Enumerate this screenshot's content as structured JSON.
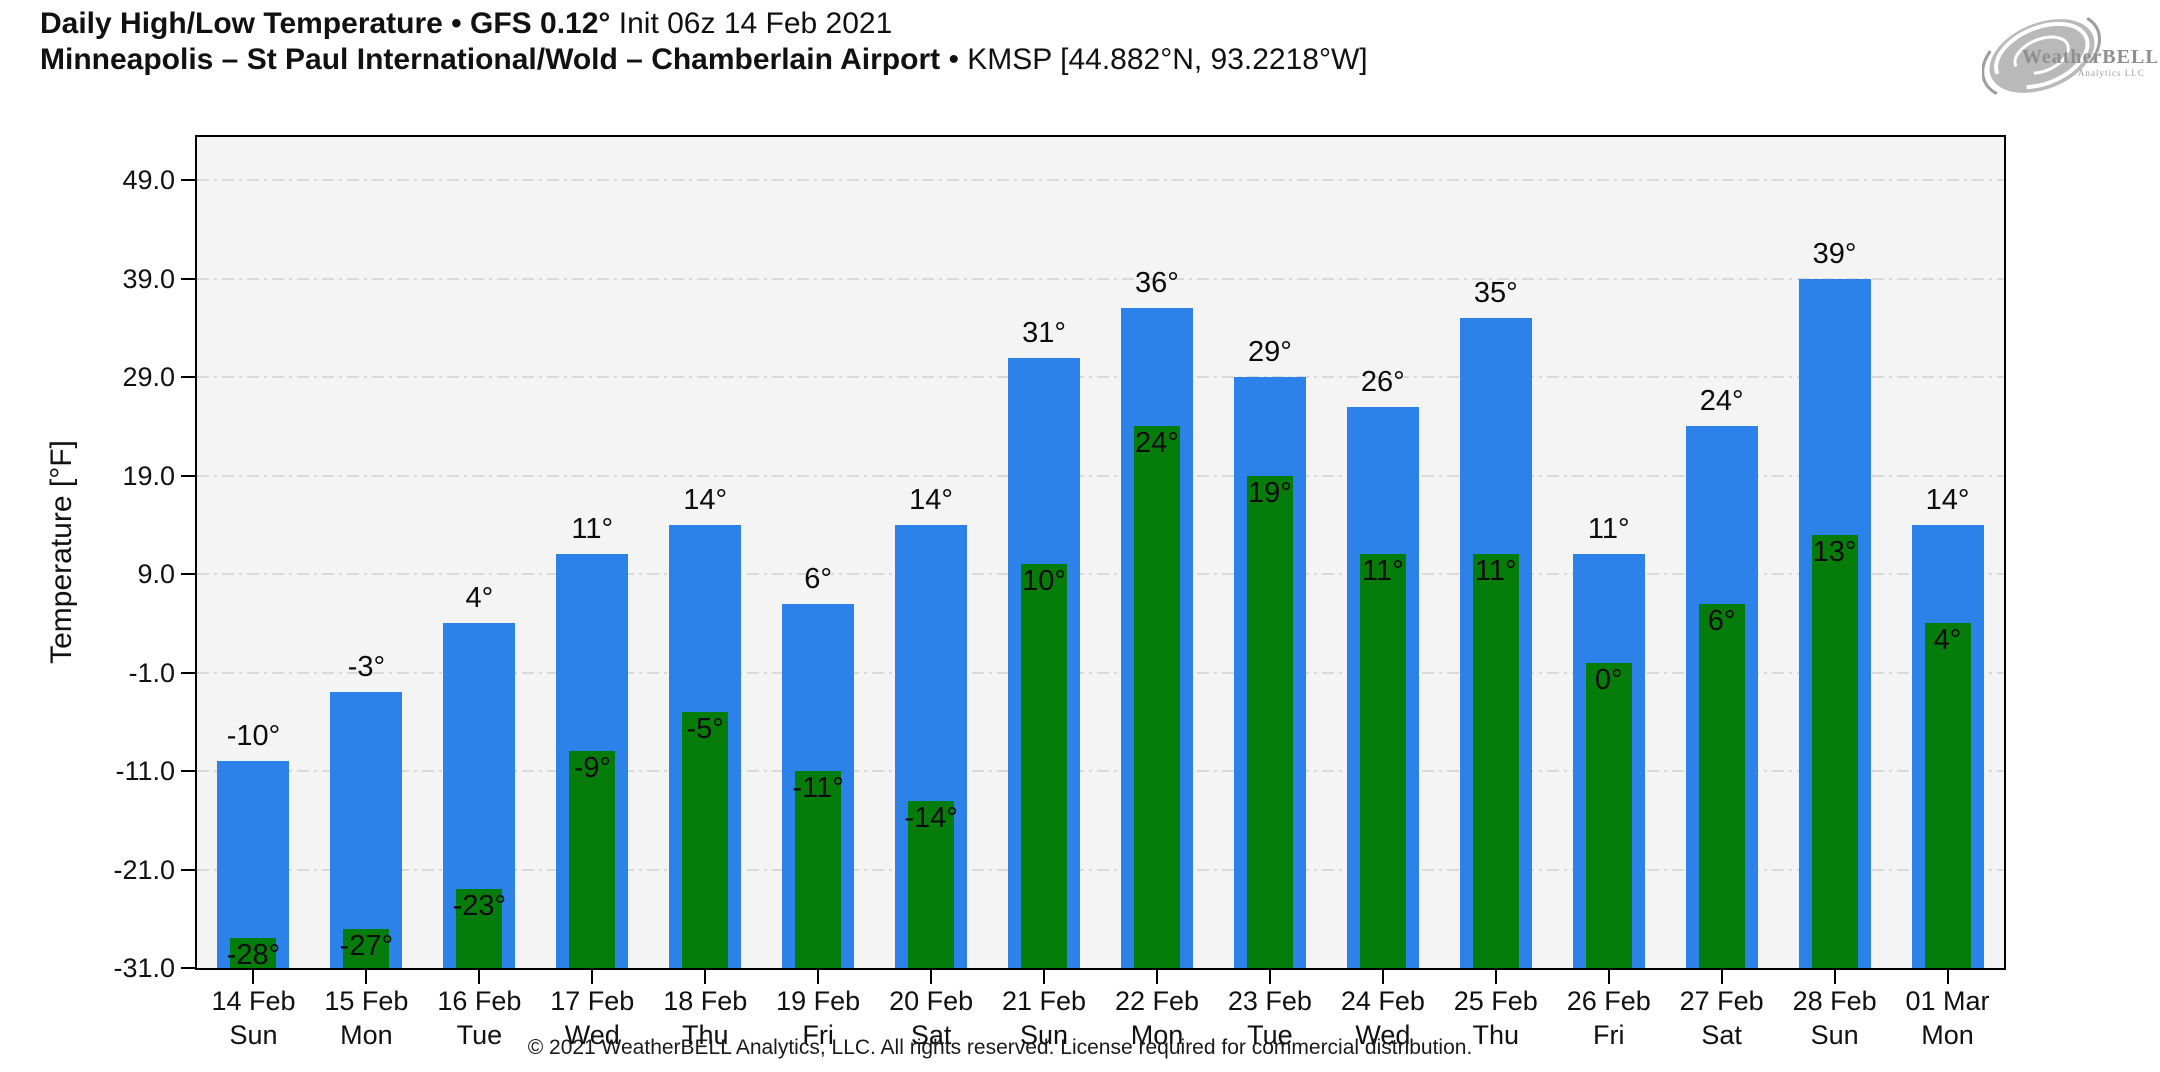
{
  "header": {
    "title_bold": "Daily High/Low Temperature • GFS 0.12°",
    "title_regular": " Init 06z 14 Feb 2021",
    "subtitle_bold": "Minneapolis – St Paul International/Wold – Chamberlain Airport",
    "subtitle_regular": " • KMSP [44.882°N, 93.2218°W]"
  },
  "logo": {
    "name": "WeatherBELL",
    "sub": "Analytics LLC"
  },
  "chart_data": {
    "type": "bar",
    "title": "Daily High/Low Temperature • GFS 0.12° Init 06z 14 Feb 2021",
    "location": "Minneapolis – St Paul International/Wold – Chamberlain Airport • KMSP [44.882°N, 93.2218°W]",
    "ylabel": "Temperature [°F]",
    "ylim": [
      -31,
      53.4
    ],
    "baseline": -31,
    "grid": true,
    "legend_position": "none",
    "value_suffix": "°",
    "yticks": [
      {
        "value": 49,
        "label": "49.0"
      },
      {
        "value": 39,
        "label": "39.0"
      },
      {
        "value": 29,
        "label": "29.0"
      },
      {
        "value": 19,
        "label": "19.0"
      },
      {
        "value": 9,
        "label": "9.0"
      },
      {
        "value": -1,
        "label": "-1.0"
      },
      {
        "value": -11,
        "label": "-11.0"
      },
      {
        "value": -21,
        "label": "-21.0"
      },
      {
        "value": -31,
        "label": "-31.0"
      }
    ],
    "categories": [
      {
        "date": "14 Feb",
        "day": "Sun"
      },
      {
        "date": "15 Feb",
        "day": "Mon"
      },
      {
        "date": "16 Feb",
        "day": "Tue"
      },
      {
        "date": "17 Feb",
        "day": "Wed"
      },
      {
        "date": "18 Feb",
        "day": "Thu"
      },
      {
        "date": "19 Feb",
        "day": "Fri"
      },
      {
        "date": "20 Feb",
        "day": "Sat"
      },
      {
        "date": "21 Feb",
        "day": "Sun"
      },
      {
        "date": "22 Feb",
        "day": "Mon"
      },
      {
        "date": "23 Feb",
        "day": "Tue"
      },
      {
        "date": "24 Feb",
        "day": "Wed"
      },
      {
        "date": "25 Feb",
        "day": "Thu"
      },
      {
        "date": "26 Feb",
        "day": "Fri"
      },
      {
        "date": "27 Feb",
        "day": "Sat"
      },
      {
        "date": "28 Feb",
        "day": "Sun"
      },
      {
        "date": "01 Mar",
        "day": "Mon"
      }
    ],
    "series": [
      {
        "name": "Daily High",
        "color": "#2c82e8",
        "values": [
          -10,
          -3,
          4,
          11,
          14,
          6,
          14,
          31,
          36,
          29,
          26,
          35,
          11,
          24,
          39,
          14
        ]
      },
      {
        "name": "Daily Low",
        "color": "#067d0a",
        "values": [
          -28,
          -27,
          -23,
          -9,
          -5,
          -11,
          -14,
          10,
          24,
          19,
          11,
          11,
          0,
          6,
          13,
          4
        ]
      }
    ]
  },
  "footer": {
    "copyright": "© 2021 WeatherBELL Analytics, LLC. All rights reserved. License required for commercial distribution."
  }
}
